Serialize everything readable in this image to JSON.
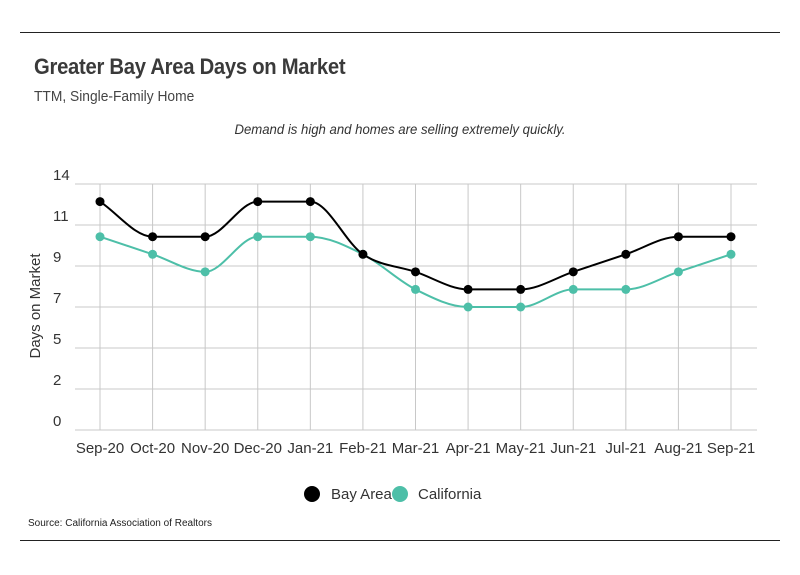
{
  "header": {
    "title": "Greater Bay Area Days on Market",
    "subtitle": "TTM, Single-Family Home",
    "annotation": "Demand is high and homes are selling extremely quickly."
  },
  "footer": {
    "source": "Source:  California Association of Realtors"
  },
  "chart_data": {
    "type": "line",
    "title": "Greater Bay Area Days on Market",
    "subtitle": "TTM, Single-Family Home",
    "xlabel": "",
    "ylabel": "Days on Market",
    "categories": [
      "Sep-20",
      "Oct-20",
      "Nov-20",
      "Dec-20",
      "Jan-21",
      "Feb-21",
      "Mar-21",
      "Apr-21",
      "May-21",
      "Jun-21",
      "Jul-21",
      "Aug-21",
      "Sep-21"
    ],
    "yticks": [
      "14",
      "11",
      "9",
      "7",
      "5",
      "2",
      "0"
    ],
    "ylim": [
      0,
      14
    ],
    "grid": true,
    "legend_position": "bottom",
    "series": [
      {
        "name": "Bay Area",
        "color": "#000000",
        "values": [
          13,
          11,
          11,
          13,
          13,
          10,
          9,
          8,
          8,
          9,
          10,
          11,
          11
        ]
      },
      {
        "name": "California",
        "color": "#4dbfa8",
        "values": [
          11,
          10,
          9,
          11,
          11,
          10,
          8,
          7,
          7,
          8,
          8,
          9,
          10
        ]
      }
    ]
  }
}
